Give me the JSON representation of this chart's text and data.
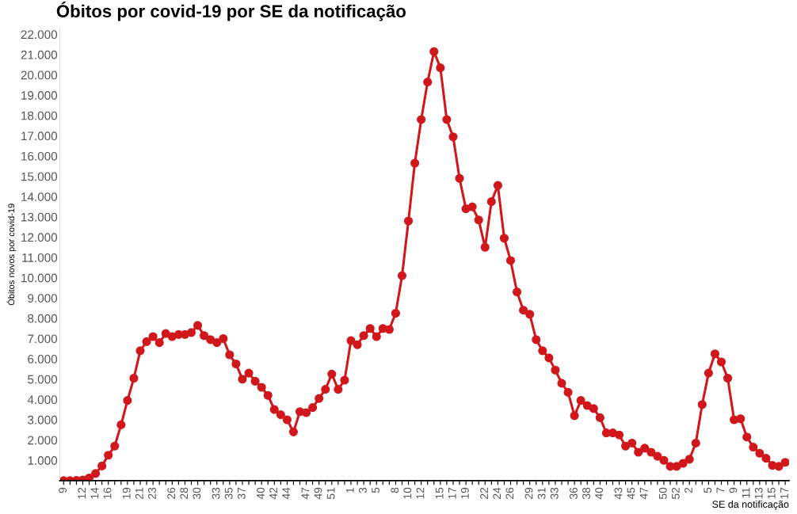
{
  "chart_data": {
    "type": "line",
    "title": "Óbitos por covid-19 por SE da notificação",
    "xlabel": "SE da notificação",
    "ylabel": "Óbitos novos por covid-19",
    "categories": [
      "9",
      null,
      null,
      "12",
      null,
      "14",
      null,
      "16",
      null,
      null,
      "19",
      null,
      "21",
      null,
      "23",
      null,
      null,
      "26",
      null,
      "28",
      null,
      "30",
      null,
      null,
      "33",
      null,
      "35",
      null,
      "37",
      null,
      null,
      "40",
      null,
      "42",
      null,
      "44",
      null,
      null,
      "47",
      null,
      "49",
      null,
      "51",
      null,
      null,
      "1",
      null,
      "3",
      null,
      "5",
      null,
      null,
      "8",
      null,
      "10",
      null,
      "12",
      null,
      null,
      "15",
      null,
      "17",
      null,
      "19",
      null,
      null,
      "22",
      null,
      "24",
      null,
      "26",
      null,
      null,
      "29",
      null,
      "31",
      null,
      "33",
      null,
      null,
      "36",
      null,
      "38",
      null,
      "40",
      null,
      null,
      "43",
      null,
      "45",
      null,
      "47",
      null,
      null,
      "50",
      null,
      "52",
      null,
      "2",
      null,
      null,
      "5",
      null,
      "7",
      null,
      "9",
      null,
      "11",
      null,
      "13",
      null,
      "15",
      null,
      "17"
    ],
    "series": [
      {
        "color": "#d0181c",
        "values": [
          0,
          0,
          10,
          30,
          130,
          350,
          720,
          1250,
          1700,
          2750,
          3950,
          5050,
          6400,
          6850,
          7100,
          6800,
          7250,
          7100,
          7200,
          7200,
          7300,
          7650,
          7150,
          6950,
          6800,
          7000,
          6200,
          5750,
          5000,
          5300,
          4900,
          4600,
          4200,
          3500,
          3250,
          3000,
          2400,
          3400,
          3350,
          3600,
          4050,
          4500,
          5250,
          4500,
          4950,
          6900,
          6700,
          7150,
          7500,
          7100,
          7500,
          7450,
          8250,
          10100,
          12800,
          15650,
          17800,
          19650,
          21150,
          20350,
          17800,
          16950,
          14900,
          13400,
          13500,
          12850,
          11500,
          13750,
          14550,
          11950,
          10850,
          9300,
          8400,
          8200,
          6950,
          6400,
          6050,
          5450,
          4800,
          4350,
          3200,
          3950,
          3700,
          3550,
          3100,
          2350,
          2350,
          2250,
          1700,
          1850,
          1400,
          1600,
          1400,
          1200,
          1000,
          700,
          700,
          850,
          1050,
          1850,
          3750,
          5300,
          6250,
          5850,
          5050,
          3000,
          3050,
          2150,
          1650,
          1350,
          1100,
          750,
          700,
          900
        ]
      }
    ],
    "ylim": [
      0,
      22300
    ],
    "yticks": [
      {
        "value": 1000,
        "label": "1.000"
      },
      {
        "value": 2000,
        "label": "2.000"
      },
      {
        "value": 3000,
        "label": "3.000"
      },
      {
        "value": 4000,
        "label": "4.000"
      },
      {
        "value": 5000,
        "label": "5.000"
      },
      {
        "value": 6000,
        "label": "6.000"
      },
      {
        "value": 7000,
        "label": "7.000"
      },
      {
        "value": 8000,
        "label": "8.000"
      },
      {
        "value": 9000,
        "label": "9.000"
      },
      {
        "value": 10000,
        "label": "10.000"
      },
      {
        "value": 11000,
        "label": "11.000"
      },
      {
        "value": 12000,
        "label": "12.000"
      },
      {
        "value": 13000,
        "label": "13.000"
      },
      {
        "value": 14000,
        "label": "14.000"
      },
      {
        "value": 15000,
        "label": "15.000"
      },
      {
        "value": 16000,
        "label": "16.000"
      },
      {
        "value": 17000,
        "label": "17.000"
      },
      {
        "value": 18000,
        "label": "18.000"
      },
      {
        "value": 19000,
        "label": "19.000"
      },
      {
        "value": 20000,
        "label": "20.000"
      },
      {
        "value": 21000,
        "label": "21.000"
      },
      {
        "value": 22000,
        "label": "22.000"
      }
    ],
    "marker": "circle",
    "line_style": "solid",
    "grid": false
  }
}
